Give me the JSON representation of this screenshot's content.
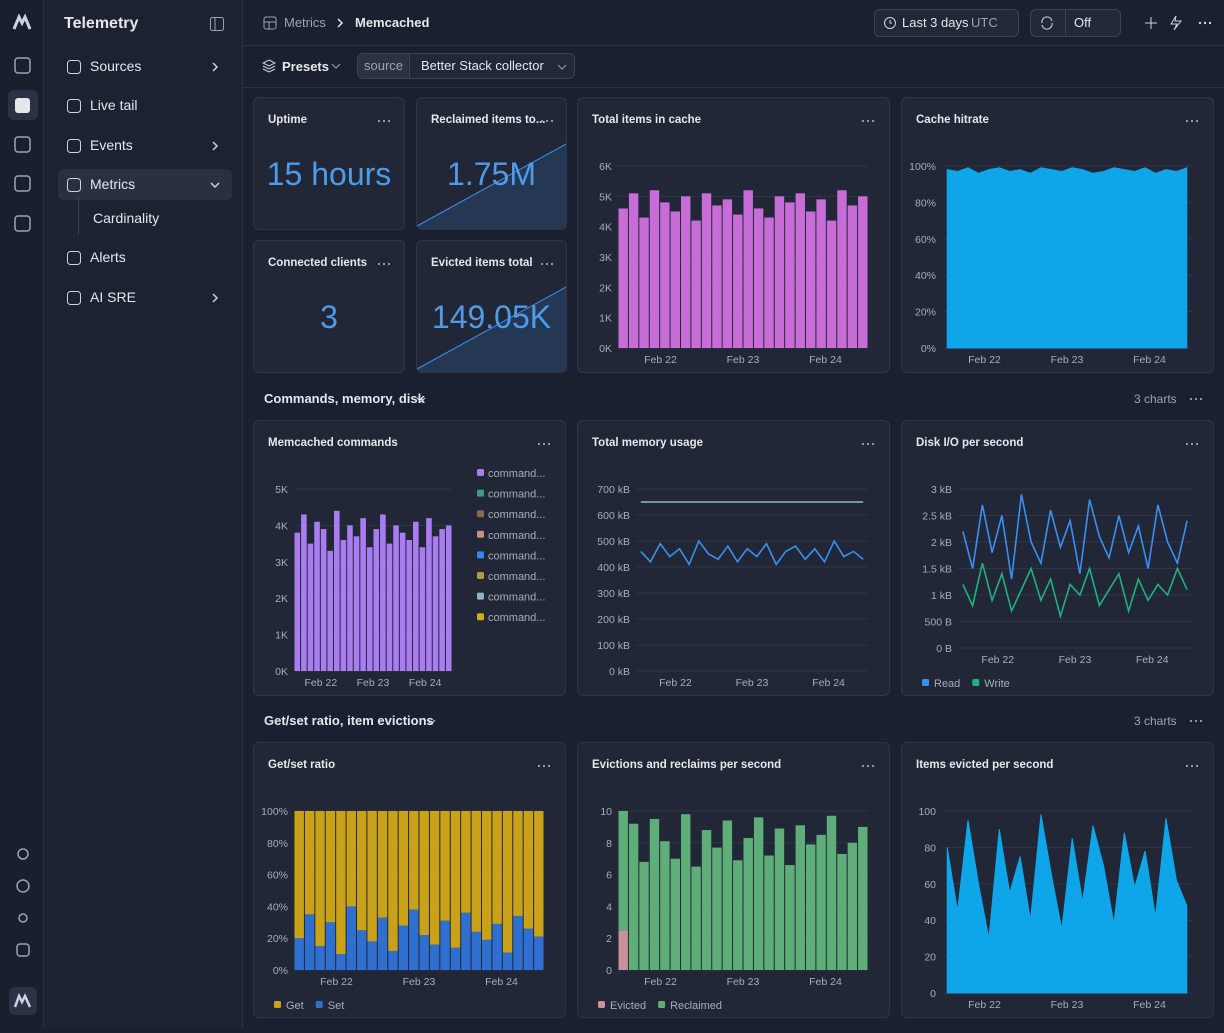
{
  "sidebar": {
    "title": "Telemetry",
    "items": [
      {
        "label": "Sources"
      },
      {
        "label": "Live tail"
      },
      {
        "label": "Events"
      },
      {
        "label": "Metrics"
      },
      {
        "label": "Cardinality"
      },
      {
        "label": "Alerts"
      },
      {
        "label": "AI SRE"
      }
    ]
  },
  "header": {
    "breadcrumb": [
      "Metrics",
      "Memcached"
    ],
    "time_range": "Last 3 days",
    "timezone": "UTC",
    "refresh": "Off"
  },
  "toolbar": {
    "presets": "Presets",
    "filter_key": "source",
    "filter_value": "Better Stack collector"
  },
  "stats": [
    {
      "title": "Uptime",
      "value": "15 hours"
    },
    {
      "title": "Reclaimed items to...",
      "value": "1.75M"
    },
    {
      "title": "Connected clients",
      "value": "3"
    },
    {
      "title": "Evicted items total",
      "value": "149.05K"
    }
  ],
  "sections": [
    {
      "title": "Commands, memory, disk",
      "count": "3 charts"
    },
    {
      "title": "Get/set ratio, item evictions",
      "count": "3 charts"
    }
  ],
  "charts": [
    {
      "title": "Total items in cache",
      "type": "bar",
      "ylim": [
        0,
        6000
      ],
      "yticks": [
        {
          "value": 0,
          "label": "0K"
        },
        {
          "value": 1000,
          "label": "1K"
        },
        {
          "value": 2000,
          "label": "2K"
        },
        {
          "value": 3000,
          "label": "3K"
        },
        {
          "value": 4000,
          "label": "4K"
        },
        {
          "value": 5000,
          "label": "5K"
        },
        {
          "value": 6000,
          "label": "6K"
        }
      ],
      "xticks": [
        "Feb 22",
        "Feb 23",
        "Feb 24"
      ],
      "series": [
        {
          "color": "#c86dd7",
          "values": [
            4600,
            5100,
            4300,
            5200,
            4800,
            4500,
            5000,
            4200,
            5100,
            4700,
            4900,
            4400,
            5200,
            4600,
            4300,
            5000,
            4800,
            5100,
            4500,
            4900,
            4200,
            5200,
            4700,
            5000
          ]
        }
      ]
    },
    {
      "title": "Cache hitrate",
      "type": "area",
      "ylim": [
        0,
        100
      ],
      "yticks": [
        {
          "value": 0,
          "label": "0%"
        },
        {
          "value": 20,
          "label": "20%"
        },
        {
          "value": 40,
          "label": "40%"
        },
        {
          "value": 60,
          "label": "60%"
        },
        {
          "value": 80,
          "label": "80%"
        },
        {
          "value": 100,
          "label": "100%"
        }
      ],
      "xticks": [
        "Feb 22",
        "Feb 23",
        "Feb 24"
      ],
      "series": [
        {
          "color": "#0ea5e9",
          "values": [
            98,
            97,
            99,
            96,
            98,
            99,
            97,
            98,
            96,
            99,
            98,
            97,
            99,
            98,
            96,
            97,
            99,
            98,
            97,
            99,
            96,
            98,
            97,
            99
          ]
        }
      ]
    },
    {
      "title": "Memcached commands",
      "type": "bar",
      "legend": "right",
      "ylim": [
        0,
        5000
      ],
      "yticks": [
        {
          "value": 0,
          "label": "0K"
        },
        {
          "value": 1000,
          "label": "1K"
        },
        {
          "value": 2000,
          "label": "2K"
        },
        {
          "value": 3000,
          "label": "3K"
        },
        {
          "value": 4000,
          "label": "4K"
        },
        {
          "value": 5000,
          "label": "5K"
        }
      ],
      "xticks": [
        "Feb 22",
        "Feb 23",
        "Feb 24"
      ],
      "series": [
        {
          "name": "command...",
          "color": "#a97cf0",
          "values": [
            3800,
            4300,
            3500,
            4100,
            3900,
            3300,
            4400,
            3600,
            4000,
            3700,
            4200,
            3400,
            3900,
            4300,
            3500,
            4000,
            3800,
            3600,
            4100,
            3400,
            4200,
            3700,
            3900,
            4000
          ]
        },
        {
          "name": "command...",
          "color": "#3f9b7a",
          "values": [
            0,
            0,
            0,
            0,
            0,
            0,
            0,
            0,
            0,
            0,
            0,
            0,
            0,
            0,
            0,
            0,
            0,
            0,
            0,
            0,
            0,
            0,
            0,
            0
          ]
        },
        {
          "name": "command...",
          "color": "#8a6a4a",
          "values": [
            0,
            0,
            0,
            0,
            0,
            0,
            0,
            0,
            0,
            0,
            0,
            0,
            0,
            0,
            0,
            0,
            0,
            0,
            0,
            0,
            0,
            0,
            0,
            0
          ]
        },
        {
          "name": "command...",
          "color": "#c98f86",
          "values": [
            0,
            0,
            0,
            0,
            0,
            0,
            0,
            0,
            0,
            0,
            0,
            0,
            0,
            0,
            0,
            0,
            0,
            0,
            0,
            0,
            0,
            0,
            0,
            0
          ]
        },
        {
          "name": "command...",
          "color": "#3b82f6",
          "values": [
            0,
            0,
            0,
            0,
            0,
            0,
            0,
            0,
            0,
            0,
            0,
            0,
            0,
            0,
            0,
            0,
            0,
            0,
            0,
            0,
            0,
            0,
            0,
            0
          ]
        },
        {
          "name": "command...",
          "color": "#b39a3a",
          "values": [
            0,
            0,
            0,
            0,
            0,
            0,
            0,
            0,
            0,
            0,
            0,
            0,
            0,
            0,
            0,
            0,
            0,
            0,
            0,
            0,
            0,
            0,
            0,
            0
          ]
        },
        {
          "name": "command...",
          "color": "#8fb3c9",
          "values": [
            0,
            0,
            0,
            0,
            0,
            0,
            0,
            0,
            0,
            0,
            0,
            0,
            0,
            0,
            0,
            0,
            0,
            0,
            0,
            0,
            0,
            0,
            0,
            0
          ]
        },
        {
          "name": "command...",
          "color": "#c7b21a",
          "values": [
            0,
            0,
            0,
            0,
            0,
            0,
            0,
            0,
            0,
            0,
            0,
            0,
            0,
            0,
            0,
            0,
            0,
            0,
            0,
            0,
            0,
            0,
            0,
            0
          ]
        }
      ]
    },
    {
      "title": "Total memory usage",
      "type": "line",
      "ylim": [
        0,
        700
      ],
      "yticks": [
        {
          "value": 0,
          "label": "0 kB"
        },
        {
          "value": 100,
          "label": "100 kB"
        },
        {
          "value": 200,
          "label": "200 kB"
        },
        {
          "value": 300,
          "label": "300 kB"
        },
        {
          "value": 400,
          "label": "400 kB"
        },
        {
          "value": 500,
          "label": "500 kB"
        },
        {
          "value": 600,
          "label": "600 kB"
        },
        {
          "value": 700,
          "label": "700 kB"
        }
      ],
      "xticks": [
        "Feb 22",
        "Feb 23",
        "Feb 24"
      ],
      "series": [
        {
          "color": "#8fb3c9",
          "values": [
            650,
            650,
            650,
            650,
            650,
            650,
            650,
            650,
            650,
            650,
            650,
            650,
            650,
            650,
            650,
            650,
            650,
            650,
            650,
            650,
            650,
            650,
            650,
            650
          ]
        },
        {
          "color": "#3b8ff0",
          "values": [
            460,
            420,
            490,
            440,
            470,
            410,
            500,
            450,
            430,
            480,
            420,
            470,
            440,
            490,
            410,
            460,
            480,
            430,
            470,
            420,
            500,
            440,
            460,
            430
          ]
        }
      ]
    },
    {
      "title": "Disk I/O per second",
      "type": "line",
      "legend": "bottom",
      "ylim": [
        0,
        3000
      ],
      "yticks": [
        {
          "value": 0,
          "label": "0 B"
        },
        {
          "value": 500,
          "label": "500 B"
        },
        {
          "value": 1000,
          "label": "1 kB"
        },
        {
          "value": 1500,
          "label": "1.5 kB"
        },
        {
          "value": 2000,
          "label": "2 kB"
        },
        {
          "value": 2500,
          "label": "2.5 kB"
        },
        {
          "value": 3000,
          "label": "3 kB"
        }
      ],
      "xticks": [
        "Feb 22",
        "Feb 23",
        "Feb 24"
      ],
      "series": [
        {
          "name": "Read",
          "color": "#3b8ff0",
          "values": [
            2200,
            1500,
            2700,
            1800,
            2500,
            1300,
            2900,
            2000,
            1600,
            2600,
            1900,
            2400,
            1400,
            2800,
            2100,
            1700,
            2500,
            1800,
            2300,
            1500,
            2700,
            2000,
            1600,
            2400
          ]
        },
        {
          "name": "Write",
          "color": "#22b07d",
          "values": [
            1200,
            800,
            1600,
            900,
            1400,
            700,
            1100,
            1500,
            900,
            1300,
            600,
            1200,
            1000,
            1500,
            800,
            1100,
            1400,
            700,
            1300,
            900,
            1200,
            1000,
            1500,
            1100
          ]
        }
      ]
    },
    {
      "title": "Get/set ratio",
      "type": "bar",
      "legend": "bottom",
      "ylim": [
        0,
        100
      ],
      "yticks": [
        {
          "value": 0,
          "label": "0%"
        },
        {
          "value": 20,
          "label": "20%"
        },
        {
          "value": 40,
          "label": "40%"
        },
        {
          "value": 60,
          "label": "60%"
        },
        {
          "value": 80,
          "label": "80%"
        },
        {
          "value": 100,
          "label": "100%"
        }
      ],
      "xticks": [
        "Feb 22",
        "Feb 23",
        "Feb 24"
      ],
      "series": [
        {
          "name": "Get",
          "color": "#c9a21a",
          "values": [
            80,
            65,
            85,
            70,
            90,
            60,
            75,
            82,
            67,
            88,
            72,
            62,
            78,
            84,
            69,
            86,
            64,
            76,
            81,
            71,
            89,
            66,
            74,
            79
          ]
        },
        {
          "name": "Set",
          "color": "#2f6fd0",
          "values": [
            20,
            35,
            15,
            30,
            10,
            40,
            25,
            18,
            33,
            12,
            28,
            38,
            22,
            16,
            31,
            14,
            36,
            24,
            19,
            29,
            11,
            34,
            26,
            21
          ]
        }
      ]
    },
    {
      "title": "Evictions and reclaims per second",
      "type": "bar",
      "legend": "bottom",
      "ylim": [
        0,
        10
      ],
      "yticks": [
        0,
        2,
        4,
        6,
        8,
        10
      ],
      "xticks": [
        "Feb 22",
        "Feb 23",
        "Feb 24"
      ],
      "series": [
        {
          "name": "Evicted",
          "color": "#c98f9a",
          "values": [
            2.5,
            0,
            0,
            0,
            0,
            0,
            0,
            0,
            0,
            0,
            0,
            0,
            0,
            0,
            0,
            0,
            0,
            0,
            0,
            0,
            0,
            0,
            0,
            0
          ]
        },
        {
          "name": "Reclaimed",
          "color": "#5fae7a",
          "values": [
            7.5,
            9.2,
            6.8,
            9.5,
            8.1,
            7.0,
            9.8,
            6.5,
            8.8,
            7.7,
            9.4,
            6.9,
            8.3,
            9.6,
            7.2,
            8.9,
            6.6,
            9.1,
            7.9,
            8.5,
            9.7,
            7.3,
            8.0,
            9.0
          ]
        }
      ]
    },
    {
      "title": "Items evicted per second",
      "type": "area",
      "ylim": [
        0,
        100
      ],
      "yticks": [
        0,
        20,
        40,
        60,
        80,
        100
      ],
      "xticks": [
        "Feb 22",
        "Feb 23",
        "Feb 24"
      ],
      "series": [
        {
          "color": "#0ea5e9",
          "values": [
            80,
            45,
            95,
            60,
            30,
            90,
            55,
            75,
            40,
            98,
            65,
            35,
            85,
            50,
            92,
            70,
            38,
            88,
            58,
            78,
            42,
            96,
            62,
            48
          ]
        }
      ]
    }
  ]
}
